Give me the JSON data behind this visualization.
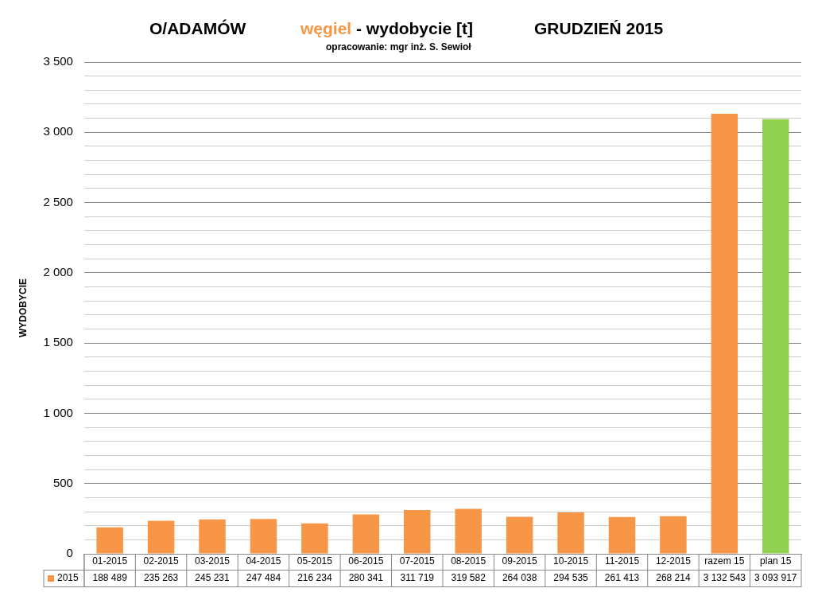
{
  "chart_data": {
    "type": "bar",
    "title": "O/ADAMÓW",
    "subtitle": "opracowanie:  mgr inż. S. Sewioł",
    "annotations": [
      "węgiel -  wydobycie [t]",
      "GRUDZIEŃ 2015",
      "188 489",
      "235 263",
      "245 231",
      "247 484",
      "216 234",
      "280 341",
      "311 719",
      "319 582",
      "264 038",
      "294 535",
      "261 413",
      "268 214",
      "3 132 543",
      "3 093 917"
    ],
    "ylabel": "WYDOBYCIE",
    "categories": [
      "01-2015",
      "02-2015",
      "03-2015",
      "04-2015",
      "05-2015",
      "06-2015",
      "07-2015",
      "08-2015",
      "09-2015",
      "10-2015",
      "11-2015",
      "12-2015",
      "razem 15",
      "plan 15"
    ],
    "series": [
      {
        "name": "2015",
        "color": "#f79646",
        "colors": [
          "#f79646",
          "#f79646",
          "#f79646",
          "#f79646",
          "#f79646",
          "#f79646",
          "#f79646",
          "#f79646",
          "#f79646",
          "#f79646",
          "#f79646",
          "#f79646",
          "#f79646",
          "#92d050"
        ],
        "values": [
          188.489,
          235.263,
          245.231,
          247.484,
          216.234,
          280.341,
          311.719,
          319.582,
          264.038,
          294.535,
          261.413,
          268.214,
          3132.543,
          3093.917
        ]
      }
    ],
    "ylim": [
      0,
      3500
    ],
    "yticks": [
      0,
      {
        "value": 100,
        "label": null
      },
      {
        "value": 200,
        "label": null
      },
      {
        "value": 300,
        "label": null
      },
      {
        "value": 400,
        "label": null
      },
      500,
      {
        "value": 600,
        "label": null
      },
      {
        "value": 700,
        "label": null
      },
      {
        "value": 800,
        "label": null
      },
      {
        "value": 900,
        "label": null
      },
      {
        "value": 1000,
        "label": "1 000"
      },
      {
        "value": 1100,
        "label": null
      },
      {
        "value": 1200,
        "label": null
      },
      {
        "value": 1300,
        "label": null
      },
      {
        "value": 1400,
        "label": null
      },
      {
        "value": 1500,
        "label": "1 500"
      },
      {
        "value": 1600,
        "label": null
      },
      {
        "value": 1700,
        "label": null
      },
      {
        "value": 1800,
        "label": null
      },
      {
        "value": 1900,
        "label": null
      },
      {
        "value": 2000,
        "label": "2 000"
      },
      {
        "value": 2100,
        "label": null
      },
      {
        "value": 2200,
        "label": null
      },
      {
        "value": 2300,
        "label": null
      },
      {
        "value": 2400,
        "label": null
      },
      {
        "value": 2500,
        "label": "2 500"
      },
      {
        "value": 2600,
        "label": null
      },
      {
        "value": 2700,
        "label": null
      },
      {
        "value": 2800,
        "label": null
      },
      {
        "value": 2900,
        "label": null
      },
      {
        "value": 3000,
        "label": "3 000"
      },
      {
        "value": 3100,
        "label": null
      },
      {
        "value": 3200,
        "label": null
      },
      {
        "value": 3300,
        "label": null
      },
      {
        "value": 3400,
        "label": null
      },
      {
        "value": 3500,
        "label": "3 500"
      }
    ],
    "grid": "y",
    "legend": "bottom"
  }
}
